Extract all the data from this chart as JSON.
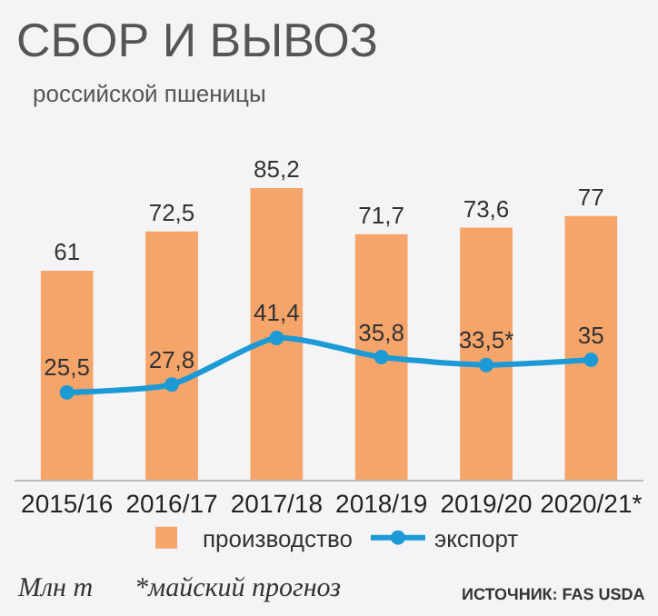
{
  "chart_data": {
    "type": "bar",
    "title": "СБОР И ВЫВОЗ",
    "subtitle": "российской пшеницы",
    "categories": [
      "2015/16",
      "2016/17",
      "2017/18",
      "2018/19",
      "2019/20",
      "2020/21*"
    ],
    "series": [
      {
        "name": "производство",
        "color": "#f5a46a",
        "values": [
          61,
          72.5,
          85.2,
          71.7,
          73.6,
          77
        ],
        "value_labels": [
          "61",
          "72,5",
          "85,2",
          "71,7",
          "73,6",
          "77"
        ]
      },
      {
        "name": "экспорт",
        "type": "line",
        "color": "#1b9ad6",
        "marker": "circle",
        "values": [
          25.5,
          27.8,
          41.4,
          35.8,
          33.5,
          35
        ],
        "value_labels": [
          "25,5",
          "27,8",
          "41,4",
          "35,8",
          "33,5*",
          "35"
        ]
      }
    ],
    "annotations": [
      "Млн т",
      "*майский прогноз",
      "ИСТОЧНИК: FAS USDA"
    ],
    "legend": "bottom",
    "grid": false,
    "tick_labels": "x"
  }
}
